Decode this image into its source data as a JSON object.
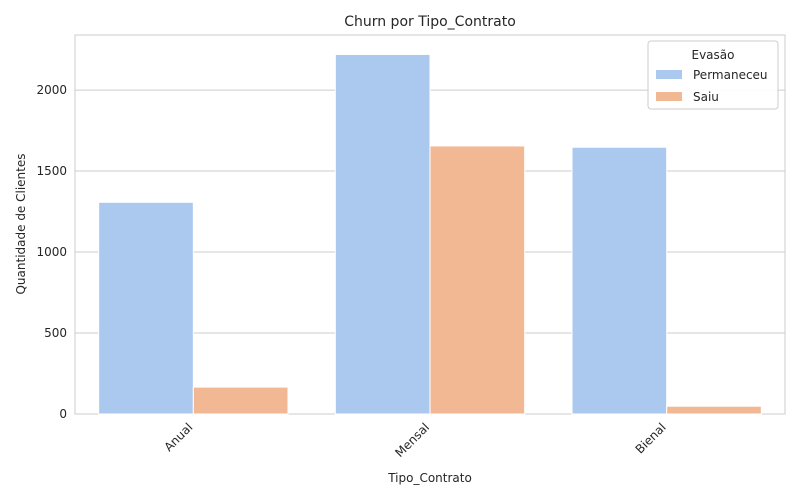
{
  "chart_data": {
    "type": "bar",
    "title": "Churn por Tipo_Contrato",
    "xlabel": "Tipo_Contrato",
    "ylabel": "Quantidade de Clientes",
    "categories": [
      "Anual",
      "Mensal",
      "Bienal"
    ],
    "series": [
      {
        "name": "Permaneceu",
        "values": [
          1307,
          2220,
          1647
        ],
        "color": "#abc9ef"
      },
      {
        "name": "Saiu",
        "values": [
          166,
          1655,
          48
        ],
        "color": "#f1b893"
      }
    ],
    "ylim": [
      0,
      2340
    ],
    "yticks": [
      0,
      500,
      1000,
      1500,
      2000
    ],
    "grid": "y",
    "legend": {
      "title": "Evasão",
      "placement": "top-right"
    }
  }
}
